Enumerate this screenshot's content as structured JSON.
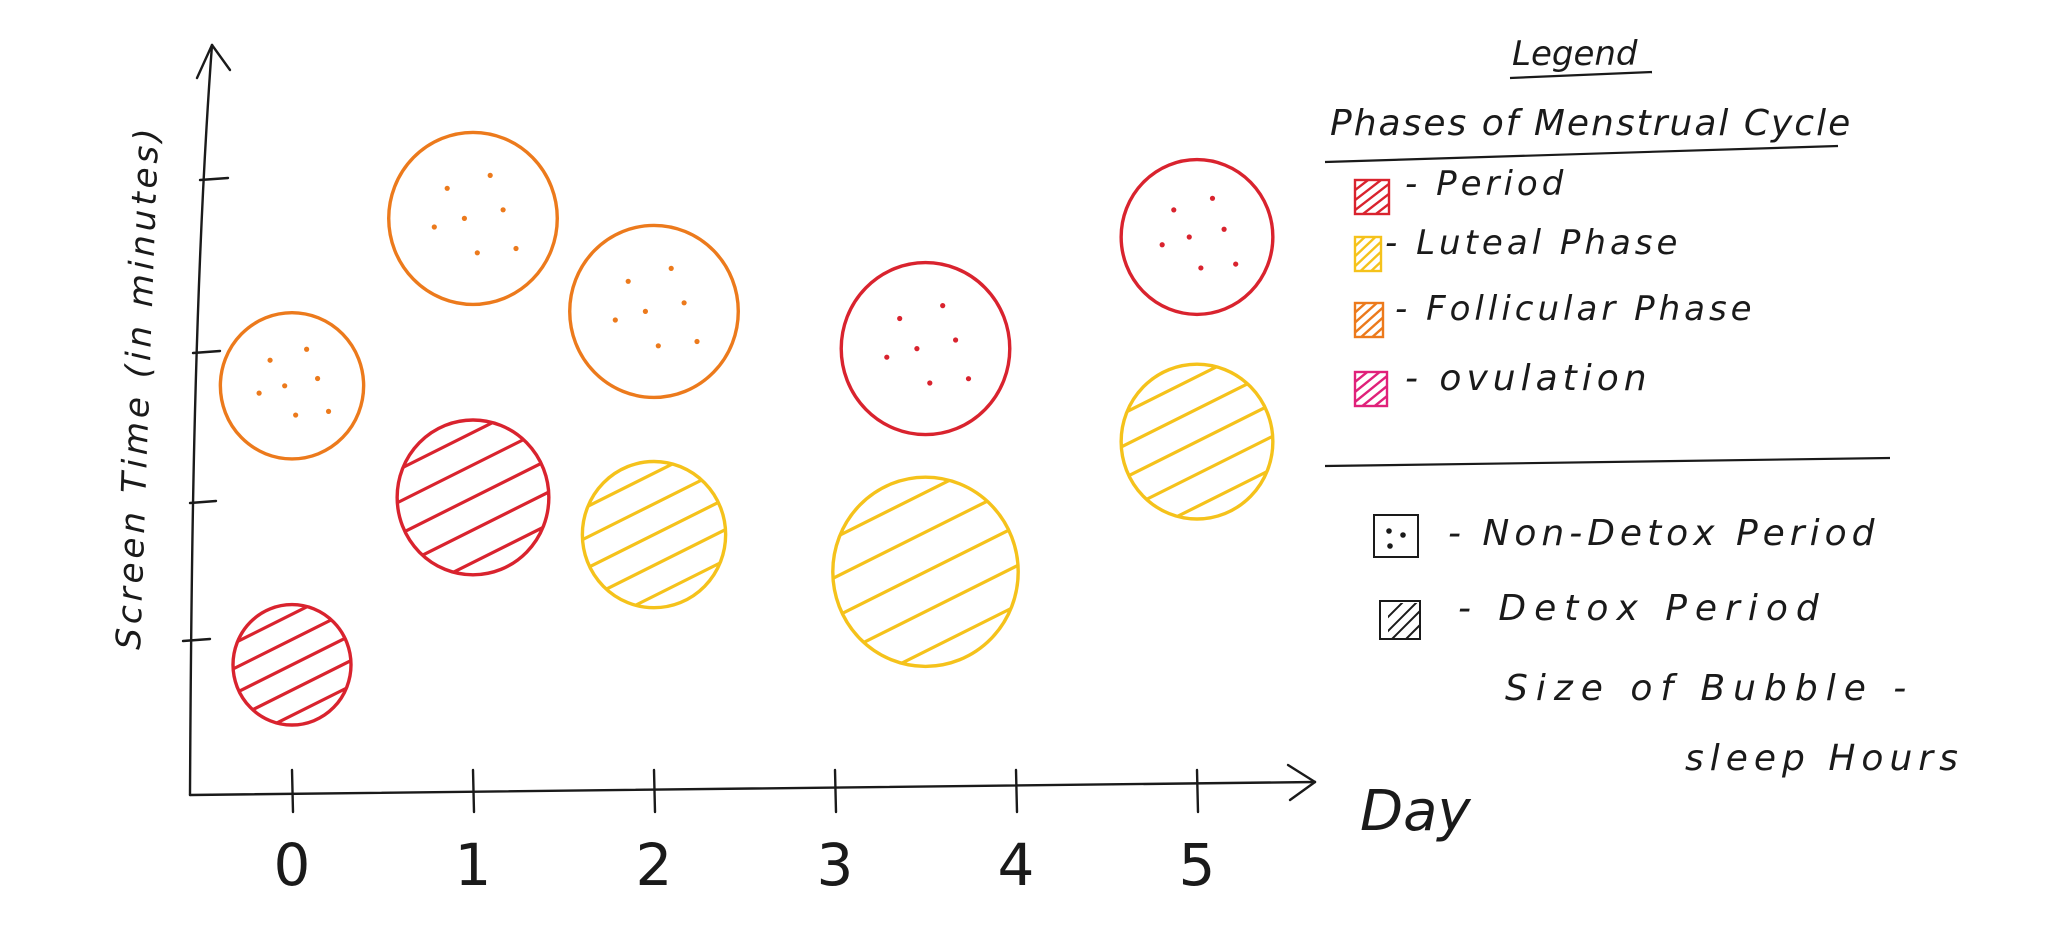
{
  "chart_data": {
    "type": "scatter",
    "subtype": "bubble",
    "title": "",
    "xlabel": "Day",
    "ylabel": "Screen Time (in minutes)",
    "x_ticks": [
      "0",
      "1",
      "2",
      "3",
      "4",
      "5"
    ],
    "y_ticks": [
      "",
      "",
      "",
      ""
    ],
    "grid": false,
    "legend_position": "right",
    "points": [
      {
        "day": 0,
        "level": 2.2,
        "size": 0.85,
        "phase": "Follicular Phase",
        "period": "Non-Detox Period"
      },
      {
        "day": 0,
        "level": 0.7,
        "size": 0.7,
        "phase": "Period",
        "period": "Detox Period"
      },
      {
        "day": 1,
        "level": 3.1,
        "size": 1.0,
        "phase": "Follicular Phase",
        "period": "Non-Detox Period"
      },
      {
        "day": 1,
        "level": 1.6,
        "size": 0.9,
        "phase": "Period",
        "period": "Detox Period"
      },
      {
        "day": 2,
        "level": 2.6,
        "size": 1.0,
        "phase": "Follicular Phase",
        "period": "Non-Detox Period"
      },
      {
        "day": 2,
        "level": 1.4,
        "size": 0.85,
        "phase": "Luteal Phase",
        "period": "Detox Period"
      },
      {
        "day": 3.5,
        "level": 2.4,
        "size": 1.0,
        "phase": "Period",
        "period": "Non-Detox Period"
      },
      {
        "day": 3.5,
        "level": 1.2,
        "size": 1.1,
        "phase": "Luteal Phase",
        "period": "Detox Period"
      },
      {
        "day": 5,
        "level": 3.0,
        "size": 0.9,
        "phase": "Period",
        "period": "Non-Detox Period"
      },
      {
        "day": 5,
        "level": 1.9,
        "size": 0.9,
        "phase": "Luteal Phase",
        "period": "Detox Period"
      }
    ],
    "colors": {
      "Period": "#d9232e",
      "Luteal Phase": "#f5c21b",
      "Follicular Phase": "#ec7a1c",
      "Ovulation": "#e0217a"
    }
  },
  "legend": {
    "heading": "Legend",
    "phases_title": "Phases of Menstrual Cycle",
    "phases": [
      {
        "label": "- Period",
        "color": "#d9232e"
      },
      {
        "label": "- Luteal Phase",
        "color": "#f5c21b"
      },
      {
        "label": "- Follicular Phase",
        "color": "#ec7a1c"
      },
      {
        "label": "- ovulation",
        "color": "#e0217a"
      }
    ],
    "patterns": [
      {
        "label": "- Non-Detox Period",
        "pattern": "dots"
      },
      {
        "label": "- Detox Period",
        "pattern": "hatch"
      }
    ],
    "size_note_1": "Size of Bubble -",
    "size_note_2": "sleep Hours"
  }
}
